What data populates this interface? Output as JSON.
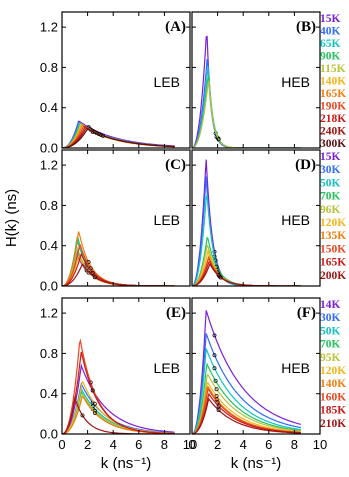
{
  "chart_data": {
    "type": "line",
    "xlabel": "k (ns⁻¹)",
    "ylabel": "H(k) (ns)",
    "xlim": [
      0,
      10
    ],
    "ylim": [
      0,
      1.35
    ],
    "xticks": [
      "0",
      "2",
      "4",
      "6",
      "8",
      "10"
    ],
    "yticks": [
      "0.0",
      "0.4",
      "0.8",
      "1.2"
    ],
    "grid": false,
    "layout": "3 rows x 2 columns, shared axes, legends to the right of each row",
    "panels": [
      {
        "id": "A",
        "label": "(A)",
        "annotation": "LEB",
        "row": 0,
        "col": 0,
        "series": [
          {
            "name": "15K",
            "color": "#7a1fd6",
            "peak_x": 1.3,
            "peak_y": 0.27
          },
          {
            "name": "40K",
            "color": "#2f6bff",
            "peak_x": 1.3,
            "peak_y": 0.26
          },
          {
            "name": "65K",
            "color": "#12c3c3",
            "peak_x": 1.4,
            "peak_y": 0.25
          },
          {
            "name": "90K",
            "color": "#22c45e",
            "peak_x": 1.4,
            "peak_y": 0.25
          },
          {
            "name": "115K",
            "color": "#b5c23a",
            "peak_x": 1.5,
            "peak_y": 0.24
          },
          {
            "name": "140K",
            "color": "#f2b61a",
            "peak_x": 1.5,
            "peak_y": 0.23
          },
          {
            "name": "165K",
            "color": "#f07d0f",
            "peak_x": 1.6,
            "peak_y": 0.23
          },
          {
            "name": "190K",
            "color": "#e8471f",
            "peak_x": 1.7,
            "peak_y": 0.22
          },
          {
            "name": "218K",
            "color": "#cc1818",
            "peak_x": 1.8,
            "peak_y": 0.21
          },
          {
            "name": "240K",
            "color": "#a01414",
            "peak_x": 1.9,
            "peak_y": 0.2
          },
          {
            "name": "300K",
            "color": "#5a1010",
            "peak_x": 2.0,
            "peak_y": 0.19
          }
        ]
      },
      {
        "id": "B",
        "label": "(B)",
        "annotation": "HEB",
        "row": 0,
        "col": 1,
        "series": [
          {
            "name": "15K",
            "color": "#7a1fd6",
            "peak_x": 1.15,
            "peak_y": 1.2
          },
          {
            "name": "40K",
            "color": "#2f6bff",
            "peak_x": 1.2,
            "peak_y": 0.92
          },
          {
            "name": "65K",
            "color": "#12c3c3",
            "peak_x": 1.25,
            "peak_y": 0.82
          },
          {
            "name": "90K",
            "color": "#22c45e",
            "peak_x": 1.3,
            "peak_y": 0.75
          },
          {
            "name": "115K",
            "color": "#b5c23a",
            "peak_x": 1.3,
            "peak_y": 0.7
          }
        ]
      },
      {
        "id": "C",
        "label": "(C)",
        "annotation": "LEB",
        "row": 1,
        "col": 0,
        "series": [
          {
            "name": "15K",
            "color": "#7a1fd6",
            "peak_x": 1.2,
            "peak_y": 0.3
          },
          {
            "name": "30K",
            "color": "#2f6bff",
            "peak_x": 1.2,
            "peak_y": 0.35
          },
          {
            "name": "50K",
            "color": "#12c3c3",
            "peak_x": 1.2,
            "peak_y": 0.45
          },
          {
            "name": "70K",
            "color": "#22c45e",
            "peak_x": 1.2,
            "peak_y": 0.5
          },
          {
            "name": "96K",
            "color": "#b5c23a",
            "peak_x": 1.2,
            "peak_y": 0.38
          },
          {
            "name": "120K",
            "color": "#f2b61a",
            "peak_x": 1.3,
            "peak_y": 0.3
          },
          {
            "name": "135K",
            "color": "#f07d0f",
            "peak_x": 1.3,
            "peak_y": 0.55
          },
          {
            "name": "150K",
            "color": "#e8471f",
            "peak_x": 1.4,
            "peak_y": 0.42
          },
          {
            "name": "165K",
            "color": "#cc1818",
            "peak_x": 1.5,
            "peak_y": 0.32
          },
          {
            "name": "200K",
            "color": "#a01414",
            "peak_x": 1.6,
            "peak_y": 0.22
          }
        ]
      },
      {
        "id": "D",
        "label": "(D)",
        "annotation": "HEB",
        "row": 1,
        "col": 1,
        "series": [
          {
            "name": "15K",
            "color": "#7a1fd6",
            "peak_x": 1.1,
            "peak_y": 1.27
          },
          {
            "name": "30K",
            "color": "#2f6bff",
            "peak_x": 1.1,
            "peak_y": 1.1
          },
          {
            "name": "50K",
            "color": "#12c3c3",
            "peak_x": 1.15,
            "peak_y": 0.95
          },
          {
            "name": "70K",
            "color": "#22c45e",
            "peak_x": 1.2,
            "peak_y": 0.5
          },
          {
            "name": "96K",
            "color": "#b5c23a",
            "peak_x": 1.2,
            "peak_y": 0.42
          },
          {
            "name": "120K",
            "color": "#f2b61a",
            "peak_x": 1.25,
            "peak_y": 0.35
          },
          {
            "name": "135K",
            "color": "#f07d0f",
            "peak_x": 1.3,
            "peak_y": 0.3
          },
          {
            "name": "150K",
            "color": "#e8471f",
            "peak_x": 1.3,
            "peak_y": 0.28
          },
          {
            "name": "165K",
            "color": "#cc1818",
            "peak_x": 1.35,
            "peak_y": 0.25
          },
          {
            "name": "200K",
            "color": "#a01414",
            "peak_x": 1.4,
            "peak_y": 0.22
          }
        ]
      },
      {
        "id": "E",
        "label": "(E)",
        "annotation": "LEB",
        "row": 2,
        "col": 0,
        "series": [
          {
            "name": "14K",
            "color": "#7a1fd6",
            "peak_x": 1.5,
            "peak_y": 0.68
          },
          {
            "name": "30K",
            "color": "#2f6bff",
            "peak_x": 1.5,
            "peak_y": 0.5
          },
          {
            "name": "50K",
            "color": "#12c3c3",
            "peak_x": 1.5,
            "peak_y": 0.45
          },
          {
            "name": "70K",
            "color": "#22c45e",
            "peak_x": 1.5,
            "peak_y": 0.42
          },
          {
            "name": "95K",
            "color": "#b5c23a",
            "peak_x": 1.6,
            "peak_y": 0.4
          },
          {
            "name": "120K",
            "color": "#f2b61a",
            "peak_x": 1.6,
            "peak_y": 0.53
          },
          {
            "name": "140K",
            "color": "#f07d0f",
            "peak_x": 1.6,
            "peak_y": 0.38
          },
          {
            "name": "160K",
            "color": "#e8471f",
            "peak_x": 1.4,
            "peak_y": 0.95
          },
          {
            "name": "185K",
            "color": "#cc1818",
            "peak_x": 1.5,
            "peak_y": 0.82
          },
          {
            "name": "210K",
            "color": "#a01414",
            "peak_x": 1.0,
            "peak_y": 0.36
          }
        ]
      },
      {
        "id": "F",
        "label": "(F)",
        "annotation": "HEB",
        "row": 2,
        "col": 1,
        "series": [
          {
            "name": "14K",
            "color": "#7a1fd6",
            "peak_x": 1.1,
            "peak_y": 1.23
          },
          {
            "name": "30K",
            "color": "#2f6bff",
            "peak_x": 1.1,
            "peak_y": 1.0
          },
          {
            "name": "50K",
            "color": "#12c3c3",
            "peak_x": 1.1,
            "peak_y": 0.85
          },
          {
            "name": "70K",
            "color": "#22c45e",
            "peak_x": 1.15,
            "peak_y": 0.7
          },
          {
            "name": "95K",
            "color": "#b5c23a",
            "peak_x": 1.2,
            "peak_y": 0.6
          },
          {
            "name": "120K",
            "color": "#f2b61a",
            "peak_x": 1.2,
            "peak_y": 0.52
          },
          {
            "name": "140K",
            "color": "#f07d0f",
            "peak_x": 1.2,
            "peak_y": 0.48
          },
          {
            "name": "160K",
            "color": "#e8471f",
            "peak_x": 1.25,
            "peak_y": 0.45
          },
          {
            "name": "185K",
            "color": "#cc1818",
            "peak_x": 1.3,
            "peak_y": 0.4
          },
          {
            "name": "210K",
            "color": "#a01414",
            "peak_x": 1.3,
            "peak_y": 0.35
          }
        ]
      }
    ]
  }
}
